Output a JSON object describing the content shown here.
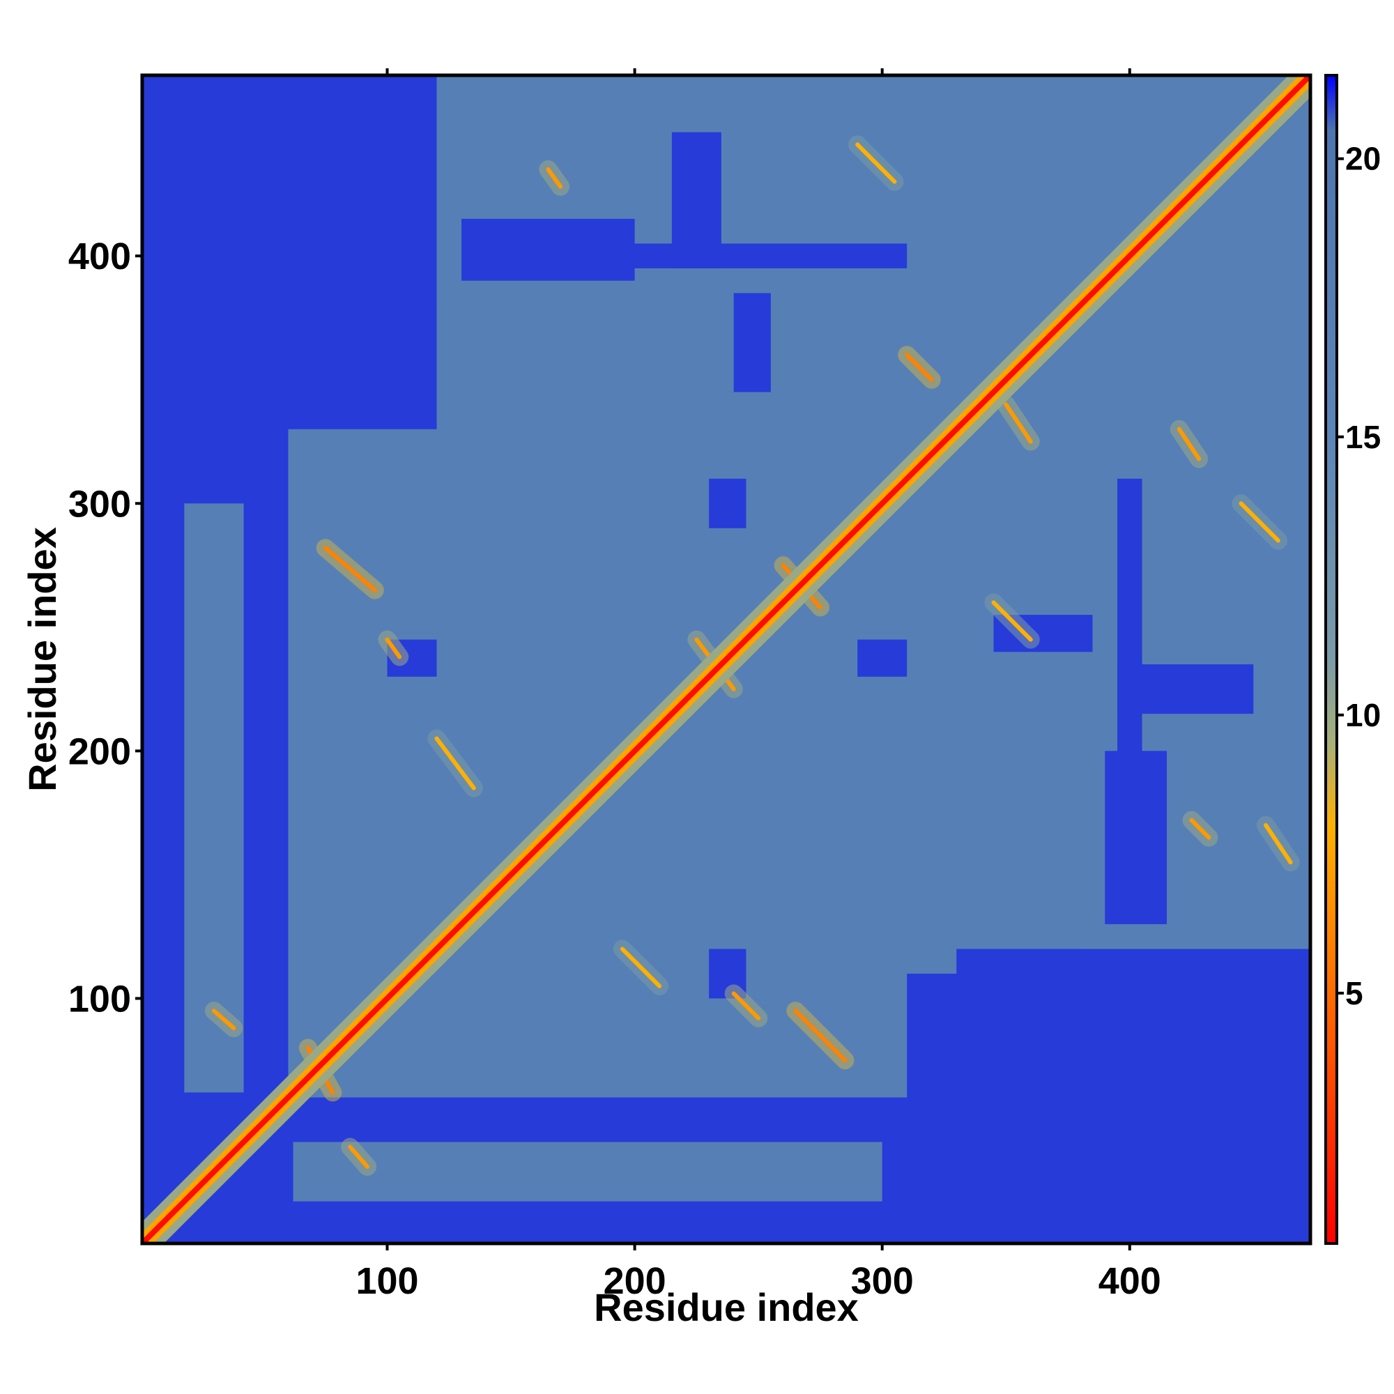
{
  "chart_data": {
    "type": "heatmap",
    "title": "",
    "xlabel": "Residue index",
    "ylabel": "Residue index",
    "xlim": [
      1,
      473
    ],
    "ylim": [
      1,
      473
    ],
    "x_ticks": [
      100,
      200,
      300,
      400
    ],
    "y_ticks": [
      100,
      200,
      300,
      400
    ],
    "grid": false,
    "matrix_symmetric": true,
    "colorbar": {
      "range": [
        0.5,
        21.5
      ],
      "ticks": [
        5,
        10,
        15,
        20
      ],
      "placement": "right",
      "stops": [
        {
          "value": 0.5,
          "color": "#ff0000"
        },
        {
          "value": 4.0,
          "color": "#ff5500"
        },
        {
          "value": 7.0,
          "color": "#ff9900"
        },
        {
          "value": 8.0,
          "color": "#ffb000"
        },
        {
          "value": 9.5,
          "color": "#a8b078"
        },
        {
          "value": 11.0,
          "color": "#7a9ba8"
        },
        {
          "value": 15.0,
          "color": "#5b86b8"
        },
        {
          "value": 20.5,
          "color": "#4d76b0"
        },
        {
          "value": 21.5,
          "color": "#0000ff"
        }
      ]
    },
    "colors": {
      "far": "#0000ff",
      "mid": "#5b86b8",
      "near": "#ff9900",
      "contact": "#ff0000"
    },
    "background_value": 21,
    "mid_value": 17,
    "regions": [
      {
        "x": [
          1,
          105
        ],
        "y": [
          105,
          473
        ],
        "value": 21
      },
      {
        "x": [
          18,
          42
        ],
        "y": [
          62,
          300
        ],
        "value": 17
      },
      {
        "x": [
          62,
          300
        ],
        "y": [
          18,
          42
        ],
        "value": 17
      },
      {
        "x": [
          60,
          330
        ],
        "y": [
          60,
          330
        ],
        "value": 17
      },
      {
        "x": [
          120,
          473
        ],
        "y": [
          120,
          473
        ],
        "value": 17
      },
      {
        "x": [
          310,
          473
        ],
        "y": [
          1,
          110
        ],
        "value": 21
      },
      {
        "x": [
          1,
          62
        ],
        "y": [
          1,
          18
        ],
        "value": 21
      },
      {
        "x": [
          120,
          320
        ],
        "y": [
          380,
          473
        ],
        "value": 17
      },
      {
        "x": [
          380,
          473
        ],
        "y": [
          120,
          320
        ],
        "value": 17
      },
      {
        "x": [
          215,
          235
        ],
        "y": [
          395,
          450
        ],
        "value": 21
      },
      {
        "x": [
          395,
          450
        ],
        "y": [
          215,
          235
        ],
        "value": 21
      },
      {
        "x": [
          130,
          200
        ],
        "y": [
          390,
          415
        ],
        "value": 21
      },
      {
        "x": [
          390,
          415
        ],
        "y": [
          130,
          200
        ],
        "value": 21
      },
      {
        "x": [
          395,
          405
        ],
        "y": [
          150,
          310
        ],
        "value": 21
      },
      {
        "x": [
          150,
          310
        ],
        "y": [
          395,
          405
        ],
        "value": 21
      },
      {
        "x": [
          240,
          255
        ],
        "y": [
          345,
          385
        ],
        "value": 21
      },
      {
        "x": [
          345,
          385
        ],
        "y": [
          240,
          255
        ],
        "value": 21
      },
      {
        "x": [
          230,
          245
        ],
        "y": [
          100,
          120
        ],
        "value": 21
      },
      {
        "x": [
          100,
          120
        ],
        "y": [
          230,
          245
        ],
        "value": 21
      },
      {
        "x": [
          290,
          310
        ],
        "y": [
          230,
          245
        ],
        "value": 21
      },
      {
        "x": [
          230,
          245
        ],
        "y": [
          290,
          310
        ],
        "value": 21
      }
    ],
    "contact_features": [
      {
        "x1": 68,
        "y1": 80,
        "x2": 78,
        "y2": 62,
        "value": 6
      },
      {
        "x1": 75,
        "y1": 282,
        "x2": 95,
        "y2": 265,
        "value": 6
      },
      {
        "x1": 260,
        "y1": 275,
        "x2": 275,
        "y2": 258,
        "value": 6
      },
      {
        "x1": 225,
        "y1": 245,
        "x2": 240,
        "y2": 225,
        "value": 7
      },
      {
        "x1": 265,
        "y1": 95,
        "x2": 285,
        "y2": 75,
        "value": 6
      },
      {
        "x1": 240,
        "y1": 102,
        "x2": 250,
        "y2": 92,
        "value": 7
      },
      {
        "x1": 350,
        "y1": 340,
        "x2": 360,
        "y2": 325,
        "value": 7
      },
      {
        "x1": 310,
        "y1": 360,
        "x2": 320,
        "y2": 350,
        "value": 6
      },
      {
        "x1": 100,
        "y1": 245,
        "x2": 105,
        "y2": 238,
        "value": 7
      },
      {
        "x1": 30,
        "y1": 95,
        "x2": 38,
        "y2": 88,
        "value": 7
      },
      {
        "x1": 165,
        "y1": 435,
        "x2": 170,
        "y2": 428,
        "value": 7
      },
      {
        "x1": 425,
        "y1": 172,
        "x2": 432,
        "y2": 165,
        "value": 7
      },
      {
        "x1": 420,
        "y1": 330,
        "x2": 428,
        "y2": 318,
        "value": 7
      },
      {
        "x1": 85,
        "y1": 40,
        "x2": 92,
        "y2": 32,
        "value": 7
      },
      {
        "x1": 120,
        "y1": 205,
        "x2": 135,
        "y2": 185,
        "value": 8
      },
      {
        "x1": 195,
        "y1": 120,
        "x2": 210,
        "y2": 105,
        "value": 8
      },
      {
        "x1": 345,
        "y1": 260,
        "x2": 360,
        "y2": 245,
        "value": 8
      },
      {
        "x1": 445,
        "y1": 300,
        "x2": 460,
        "y2": 285,
        "value": 8
      },
      {
        "x1": 290,
        "y1": 445,
        "x2": 305,
        "y2": 430,
        "value": 8
      },
      {
        "x1": 455,
        "y1": 170,
        "x2": 465,
        "y2": 155,
        "value": 8
      }
    ]
  }
}
